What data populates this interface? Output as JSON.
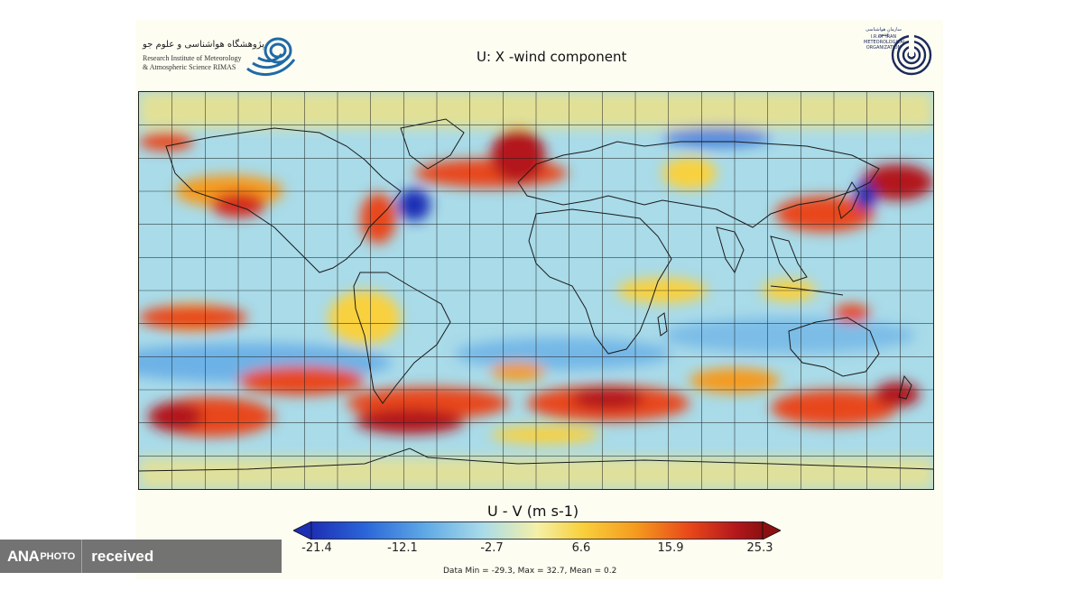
{
  "title": "U: X -wind component",
  "logo_left": {
    "persian_text": "پژوهشگاه هواشناسی و علوم جو",
    "english_line1": "Research Institute of Meteorology",
    "english_line2": "& Atmospheric Science  RIMAS"
  },
  "logo_right": {
    "line1": "سازمان هواشناسی کشور",
    "line2": "I.R.OF IRAN",
    "line3": "METEOROLOGICAL",
    "line4": "ORGANIZATION"
  },
  "colorbar": {
    "title": "U - V (m s-1)",
    "ticks": [
      "-21.4",
      "-12.1",
      "-2.7",
      "6.6",
      "15.9",
      "25.3"
    ],
    "min": -21.4,
    "max": 25.3,
    "colors": [
      "#1d2fb5",
      "#2b66d9",
      "#5ea8e6",
      "#a9dbe9",
      "#f4f0a8",
      "#f9d03c",
      "#f59a1e",
      "#e8461a",
      "#b3181c",
      "#8c1010"
    ]
  },
  "stats": "Data Min = -29.3, Max = 32.7, Mean = 0.2",
  "watermark": {
    "brand_main": "ANA",
    "brand_sub": "PHOTO",
    "label": "received"
  }
}
